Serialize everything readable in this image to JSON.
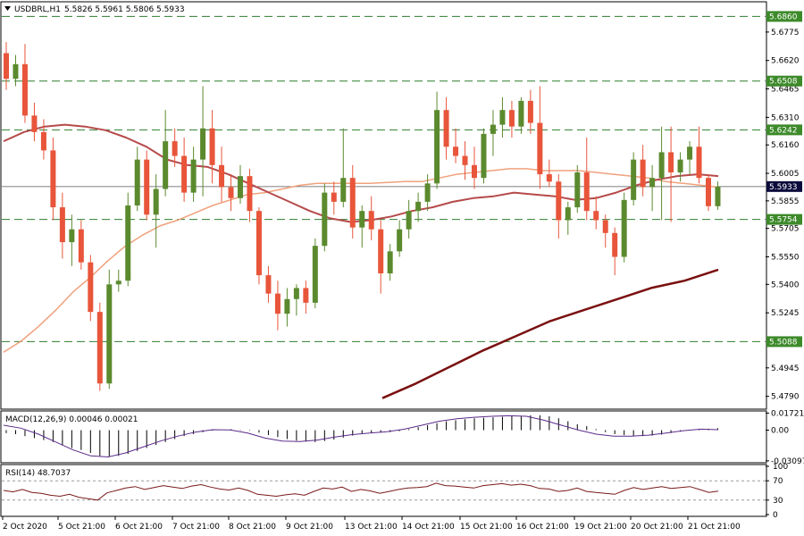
{
  "header": {
    "symbol_line": "USDBRL,H1",
    "ohlc": "5.5826 5.5961 5.5806 5.5933"
  },
  "colors": {
    "bull": "#5b8a2e",
    "bear": "#e8553a",
    "ma_fast": "#f0a17c",
    "ma_mid": "#b64a4a",
    "ma_slow": "#7a1010",
    "level_line": "#2e7d2e",
    "level_badge": "#3d8a2a",
    "price_badge": "#0a0a3c",
    "macd_signal": "#5a2a8a",
    "rsi_line": "#7a1a1a"
  },
  "chart_data": [
    {
      "type": "candlestick",
      "title": "",
      "ylim": [
        5.4725,
        5.6935
      ],
      "yticks": [
        "5.6775",
        "5.6620",
        "5.6465",
        "5.6310",
        "5.6160",
        "5.6005",
        "5.5855",
        "5.5705",
        "5.5550",
        "5.5400",
        "5.5245",
        "5.4945",
        "5.4790"
      ],
      "ytick_values": [
        5.6775,
        5.662,
        5.6465,
        5.631,
        5.616,
        5.6005,
        5.5855,
        5.5705,
        5.555,
        5.54,
        5.5245,
        5.4945,
        5.479
      ],
      "xticks": [
        "2 Oct 2020",
        "5 Oct 21:00",
        "6 Oct 21:00",
        "7 Oct 21:00",
        "8 Oct 21:00",
        "9 Oct 21:00",
        "13 Oct 21:00",
        "14 Oct 21:00",
        "15 Oct 21:00",
        "16 Oct 21:00",
        "19 Oct 21:00",
        "20 Oct 21:00",
        "21 Oct 21:00"
      ],
      "levels": [
        {
          "value": 5.686,
          "label": "5.6860"
        },
        {
          "value": 5.6508,
          "label": "5.6508"
        },
        {
          "value": 5.6242,
          "label": "5.6242"
        },
        {
          "value": 5.5754,
          "label": "5.5754"
        },
        {
          "value": 5.5088,
          "label": "5.5088"
        }
      ],
      "current_price": {
        "value": 5.5933,
        "label": "5.5933"
      },
      "candles": [
        [
          5.666,
          5.672,
          5.646,
          5.652
        ],
        [
          5.652,
          5.665,
          5.648,
          5.66
        ],
        [
          5.66,
          5.671,
          5.628,
          5.632
        ],
        [
          5.632,
          5.639,
          5.618,
          5.623
        ],
        [
          5.623,
          5.63,
          5.608,
          5.613
        ],
        [
          5.613,
          5.62,
          5.575,
          5.582
        ],
        [
          5.582,
          5.59,
          5.554,
          5.563
        ],
        [
          5.563,
          5.578,
          5.55,
          5.57
        ],
        [
          5.57,
          5.575,
          5.548,
          5.552
        ],
        [
          5.552,
          5.556,
          5.52,
          5.525
        ],
        [
          5.525,
          5.53,
          5.482,
          5.486
        ],
        [
          5.486,
          5.548,
          5.483,
          5.54
        ],
        [
          5.54,
          5.548,
          5.536,
          5.542
        ],
        [
          5.542,
          5.59,
          5.539,
          5.583
        ],
        [
          5.583,
          5.615,
          5.58,
          5.608
        ],
        [
          5.608,
          5.613,
          5.575,
          5.578
        ],
        [
          5.578,
          5.6,
          5.56,
          5.592
        ],
        [
          5.592,
          5.635,
          5.588,
          5.618
        ],
        [
          5.618,
          5.625,
          5.604,
          5.61
        ],
        [
          5.61,
          5.62,
          5.585,
          5.59
        ],
        [
          5.59,
          5.615,
          5.585,
          5.608
        ],
        [
          5.608,
          5.648,
          5.588,
          5.625
        ],
        [
          5.625,
          5.635,
          5.595,
          5.605
        ],
        [
          5.605,
          5.615,
          5.585,
          5.593
        ],
        [
          5.593,
          5.6,
          5.58,
          5.587
        ],
        [
          5.587,
          5.605,
          5.584,
          5.599
        ],
        [
          5.599,
          5.603,
          5.574,
          5.58
        ],
        [
          5.58,
          5.582,
          5.54,
          5.545
        ],
        [
          5.545,
          5.55,
          5.53,
          5.535
        ],
        [
          5.535,
          5.542,
          5.515,
          5.524
        ],
        [
          5.524,
          5.538,
          5.517,
          5.532
        ],
        [
          5.532,
          5.54,
          5.523,
          5.538
        ],
        [
          5.538,
          5.542,
          5.524,
          5.53
        ],
        [
          5.53,
          5.565,
          5.527,
          5.561
        ],
        [
          5.561,
          5.595,
          5.558,
          5.59
        ],
        [
          5.59,
          5.596,
          5.578,
          5.585
        ],
        [
          5.585,
          5.625,
          5.582,
          5.598
        ],
        [
          5.598,
          5.605,
          5.565,
          5.571
        ],
        [
          5.571,
          5.583,
          5.56,
          5.58
        ],
        [
          5.58,
          5.588,
          5.564,
          5.57
        ],
        [
          5.57,
          5.575,
          5.535,
          5.546
        ],
        [
          5.546,
          5.562,
          5.542,
          5.558
        ],
        [
          5.558,
          5.575,
          5.555,
          5.57
        ],
        [
          5.57,
          5.586,
          5.565,
          5.58
        ],
        [
          5.58,
          5.59,
          5.574,
          5.585
        ],
        [
          5.585,
          5.6,
          5.58,
          5.595
        ],
        [
          5.595,
          5.645,
          5.592,
          5.635
        ],
        [
          5.635,
          5.642,
          5.608,
          5.615
        ],
        [
          5.615,
          5.625,
          5.606,
          5.61
        ],
        [
          5.61,
          5.618,
          5.597,
          5.605
        ],
        [
          5.605,
          5.615,
          5.592,
          5.598
        ],
        [
          5.598,
          5.625,
          5.595,
          5.622
        ],
        [
          5.622,
          5.635,
          5.61,
          5.627
        ],
        [
          5.627,
          5.642,
          5.62,
          5.635
        ],
        [
          5.635,
          5.64,
          5.62,
          5.626
        ],
        [
          5.626,
          5.642,
          5.622,
          5.64
        ],
        [
          5.64,
          5.646,
          5.622,
          5.628
        ],
        [
          5.628,
          5.648,
          5.592,
          5.6
        ],
        [
          5.6,
          5.608,
          5.593,
          5.596
        ],
        [
          5.596,
          5.6,
          5.565,
          5.575
        ],
        [
          5.575,
          5.585,
          5.567,
          5.582
        ],
        [
          5.582,
          5.605,
          5.579,
          5.601
        ],
        [
          5.601,
          5.62,
          5.575,
          5.58
        ],
        [
          5.58,
          5.588,
          5.57,
          5.575
        ],
        [
          5.575,
          5.578,
          5.56,
          5.568
        ],
        [
          5.568,
          5.571,
          5.545,
          5.555
        ],
        [
          5.555,
          5.59,
          5.552,
          5.586
        ],
        [
          5.586,
          5.612,
          5.583,
          5.608
        ],
        [
          5.608,
          5.616,
          5.588,
          5.593
        ],
        [
          5.593,
          5.605,
          5.58,
          5.598
        ],
        [
          5.598,
          5.626,
          5.575,
          5.612
        ],
        [
          5.612,
          5.626,
          5.574,
          5.601
        ],
        [
          5.601,
          5.612,
          5.596,
          5.608
        ],
        [
          5.608,
          5.618,
          5.6,
          5.615
        ],
        [
          5.615,
          5.626,
          5.595,
          5.598
        ],
        [
          5.598,
          5.6,
          5.58,
          5.5826
        ],
        [
          5.5826,
          5.5961,
          5.5806,
          5.5933
        ]
      ],
      "series": [
        {
          "values": [
            5.503,
            5.509,
            5.517,
            5.526,
            5.536,
            5.544,
            5.553,
            5.561,
            5.567,
            5.572,
            5.575,
            5.579,
            5.583,
            5.586,
            5.589,
            5.59,
            5.592,
            5.594,
            5.595,
            5.595,
            5.595,
            5.595,
            5.5955,
            5.596,
            5.596,
            5.598,
            5.6,
            5.601,
            5.602,
            5.603,
            5.603,
            5.602,
            5.602,
            5.602,
            5.601,
            5.6,
            5.599,
            5.598,
            5.596,
            5.595,
            5.594,
            5.593
          ]
        },
        {
          "values": [
            5.618,
            5.623,
            5.626,
            5.627,
            5.626,
            5.624,
            5.62,
            5.615,
            5.608,
            5.605,
            5.604,
            5.6,
            5.595,
            5.59,
            5.585,
            5.58,
            5.576,
            5.574,
            5.575,
            5.577,
            5.58,
            5.582,
            5.585,
            5.587,
            5.588,
            5.59,
            5.589,
            5.588,
            5.586,
            5.587,
            5.59,
            5.594,
            5.597,
            5.599,
            5.6,
            5.599
          ]
        },
        {
          "values": [
            5.478,
            5.486,
            5.495,
            5.504,
            5.512,
            5.52,
            5.526,
            5.532,
            5.538,
            5.542,
            5.548
          ]
        }
      ]
    },
    {
      "type": "bar",
      "title": "MACD(12,26,9) 0.00046 0.00021",
      "ylim": [
        -0.032,
        0.0185
      ],
      "yticks": [
        "0.01721",
        "0.00",
        "-0.03097"
      ],
      "ytick_values": [
        0.01721,
        0.0,
        -0.03097
      ],
      "values": [
        -0.003,
        -0.004,
        -0.006,
        -0.008,
        -0.01,
        -0.012,
        -0.015,
        -0.018,
        -0.02,
        -0.023,
        -0.026,
        -0.027,
        -0.026,
        -0.024,
        -0.021,
        -0.018,
        -0.015,
        -0.012,
        -0.009,
        -0.006,
        -0.004,
        -0.002,
        -0.0005,
        0.0005,
        0.001,
        0.0005,
        -0.0005,
        -0.0025,
        -0.005,
        -0.007,
        -0.009,
        -0.0105,
        -0.0115,
        -0.012,
        -0.011,
        -0.0095,
        -0.0075,
        -0.0055,
        -0.004,
        -0.003,
        -0.0025,
        -0.002,
        -0.001,
        0.001,
        0.003,
        0.005,
        0.007,
        0.009,
        0.01,
        0.011,
        0.012,
        0.0125,
        0.013,
        0.0135,
        0.014,
        0.0145,
        0.015,
        0.015,
        0.014,
        0.012,
        0.009,
        0.006,
        0.004,
        0.001,
        -0.002,
        -0.004,
        -0.005,
        -0.006,
        -0.006,
        -0.0055,
        -0.0045,
        -0.003,
        -0.0015,
        0.0,
        0.001,
        0.0015,
        0.002
      ],
      "series": [
        {
          "values": [
            0.005,
            0.002,
            -0.004,
            -0.012,
            -0.02,
            -0.026,
            -0.027,
            -0.023,
            -0.017,
            -0.011,
            -0.006,
            -0.002,
            0.0005,
            0.0002,
            -0.003,
            -0.008,
            -0.011,
            -0.0115,
            -0.01,
            -0.007,
            -0.0045,
            -0.003,
            -0.0015,
            0.001,
            0.005,
            0.009,
            0.0115,
            0.013,
            0.014,
            0.0145,
            0.014,
            0.01,
            0.005,
            0.0,
            -0.004,
            -0.006,
            -0.006,
            -0.005,
            -0.003,
            -0.0005,
            0.001,
            0.0005
          ]
        }
      ]
    },
    {
      "type": "line",
      "title": "RSI(14) 48.7037",
      "ylim": [
        0,
        100
      ],
      "yticks": [
        "100",
        "70",
        "30",
        "0"
      ],
      "ytick_values": [
        100,
        70,
        30,
        0
      ],
      "series": [
        {
          "values": [
            50,
            47,
            52,
            46,
            44,
            40,
            38,
            42,
            36,
            33,
            30,
            45,
            50,
            55,
            58,
            52,
            56,
            60,
            57,
            54,
            59,
            62,
            57,
            53,
            51,
            55,
            50,
            42,
            40,
            38,
            41,
            43,
            40,
            48,
            55,
            53,
            57,
            48,
            52,
            49,
            44,
            48,
            52,
            55,
            56,
            58,
            65,
            60,
            59,
            57,
            55,
            60,
            62,
            64,
            61,
            63,
            60,
            54,
            53,
            48,
            50,
            55,
            48,
            46,
            44,
            42,
            50,
            56,
            52,
            55,
            58,
            54,
            56,
            58,
            52,
            46,
            48.7
          ]
        }
      ]
    }
  ]
}
